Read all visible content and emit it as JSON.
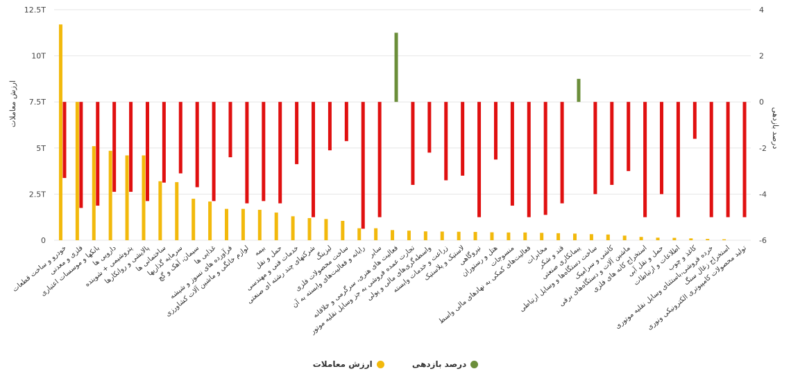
{
  "chart_data": {
    "type": "bar",
    "title": "",
    "xlabel": "",
    "left_ylabel": "ارزش معاملات",
    "right_ylabel": "درصد بازدهی",
    "left_ylim": [
      0,
      12.5
    ],
    "right_ylim": [
      -6,
      4
    ],
    "left_ticks": [
      "0",
      "2.5T",
      "5T",
      "7.5T",
      "10T",
      "12.5T"
    ],
    "right_ticks": [
      "-6",
      "-4",
      "-2",
      "0",
      "2",
      "4"
    ],
    "colors": {
      "value": "#f2b90c",
      "return_negative": "#e01010",
      "return_positive": "#6b8e3a"
    },
    "legend": [
      {
        "name": "درصد بازدهی",
        "color": "#6b8e3a"
      },
      {
        "name": "ارزش معاملات",
        "color": "#f2b90c"
      }
    ],
    "categories": [
      "خودرو و ساخت قطعات",
      "فلزی و معدنی",
      "بانکها و موسسات اعتباری",
      "دارویی ها",
      "پتروشیمی + شوینده",
      "پالایشی و روانکارها",
      "ساختمانی ها",
      "سرمایه گذاریها",
      "سیمان، آهک و گچ",
      "غذایی ها",
      "فرآورده های نسوز و شیشه",
      "لوازم خانگی و ماشین آلات کشاورزی",
      "بیمه",
      "حمل و نقل",
      "خدمات فنی و مهندسی",
      "شرکتهای چند رشته ای صنعتی",
      "لیزینگ",
      "ساخت محصولات فلزی",
      "رایانه و فعالیت‌های وابسته به آن",
      "سایر",
      "فعالیت های هنری، سرگرمی و خلاقانه",
      "تجارت عمده فروشی به جز وسایل نقلیه موتور",
      "واسطه‌گری‌های مالی و پولی",
      "زراعت و خدمات وابسته",
      "لاستیک و پلاستیک",
      "نیروگاهی",
      "هتل و رستوران",
      "منسوجات",
      "فعالیت‌های کمکی به نهادهای مالی واسط",
      "مخابرات",
      "قند و شکر",
      "پیمانکاری صنعتی",
      "ساخت دستگاه‌ها و وسایل ارتباطی",
      "کاشی و سرامیک",
      "ماشین آلات و دستگاه‌های برقی",
      "استخراج کانه های فلزی",
      "حمل و نقل آبی",
      "اطلاعات و ارتباطات",
      "کاغذ و چوب",
      "خرده فروشی،باستثنای وسایل نقلیه موتوری",
      "استخراج زغال سنگ",
      "تولید محصولات کامپیوتری الکترونیکی ونوری"
    ],
    "series": [
      {
        "name": "ارزش معاملات",
        "axis": "left",
        "unit": "T",
        "values": [
          11.7,
          7.5,
          5.1,
          4.85,
          4.6,
          4.6,
          3.2,
          3.15,
          2.25,
          2.1,
          1.7,
          1.7,
          1.65,
          1.5,
          1.3,
          1.2,
          1.15,
          1.05,
          0.65,
          0.65,
          0.55,
          0.52,
          0.48,
          0.47,
          0.46,
          0.45,
          0.43,
          0.42,
          0.42,
          0.4,
          0.38,
          0.36,
          0.33,
          0.31,
          0.25,
          0.18,
          0.14,
          0.13,
          0.1,
          0.07,
          0.05,
          0.0
        ]
      },
      {
        "name": "درصد بازدهی",
        "axis": "right",
        "unit": "%",
        "values": [
          -3.3,
          -4.6,
          -4.5,
          -3.9,
          -3.9,
          -4.3,
          -3.5,
          -3.1,
          -3.7,
          -4.3,
          -2.4,
          -4.4,
          -4.3,
          -4.4,
          -2.7,
          -5.0,
          -2.1,
          -1.7,
          -5.5,
          -5.0,
          3.0,
          -3.6,
          -2.2,
          -3.4,
          -3.2,
          -5.0,
          -2.5,
          -4.5,
          -5.0,
          -4.9,
          -4.4,
          1.0,
          -4.0,
          -3.6,
          -3.0,
          -5.0,
          -4.0,
          -5.0,
          -1.6,
          -5.0,
          -5.0,
          -5.0
        ]
      }
    ]
  }
}
